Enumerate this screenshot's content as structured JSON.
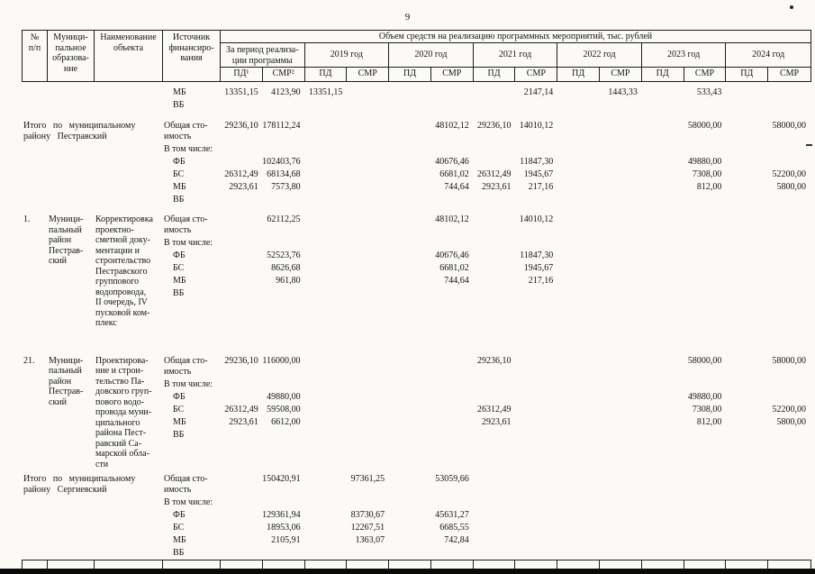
{
  "page": {
    "number": "9"
  },
  "table": {
    "header": {
      "col_num": "№\nп/п",
      "col_municipality": "Муници-\nпальное\nобразова-\nние",
      "col_object": "Наименование\nобъекта",
      "col_source": "Источник\nфинансиро-\nвания",
      "volume_title": "Объем средств на реализацию программных мероприятий, тыс. рублей",
      "period_label": "За период реализа-\nции программы",
      "years": [
        "2019 год",
        "2020 год",
        "2021 год",
        "2022 год",
        "2023 год",
        "2024 год"
      ],
      "sub_cols": [
        "ПД¹",
        "СМР²",
        "ПД",
        "СМР",
        "ПД",
        "СМР",
        "ПД",
        "СМР",
        "ПД",
        "СМР",
        "ПД",
        "СМР",
        "ПД",
        "СМР"
      ]
    },
    "blocks": [
      {
        "num": "",
        "municipality": "",
        "object": "",
        "lines": [
          {
            "source": "    МБ",
            "values": [
              "13351,15",
              "4123,90",
              "13351,15",
              "",
              "",
              "",
              "",
              "2147,14",
              "",
              "1443,33",
              "",
              "533,43",
              "",
              ""
            ]
          },
          {
            "source": "    ВБ",
            "values": []
          }
        ]
      },
      {
        "label": "Итого по муниципальному району Пестравский",
        "lines": [
          {
            "source": "Общая сто-\nимость",
            "values": [
              "29236,10",
              "178112,24",
              "",
              "",
              "",
              "48102,12",
              "29236,10",
              "14010,12",
              "",
              "",
              "",
              "58000,00",
              "",
              "58000,00"
            ]
          },
          {
            "source": "В том числе:",
            "values": []
          },
          {
            "source": "    ФБ",
            "values": [
              "",
              "102403,76",
              "",
              "",
              "",
              "40676,46",
              "",
              "11847,30",
              "",
              "",
              "",
              "49880,00",
              "",
              ""
            ]
          },
          {
            "source": "    БС",
            "values": [
              "26312,49",
              "68134,68",
              "",
              "",
              "",
              "6681,02",
              "26312,49",
              "1945,67",
              "",
              "",
              "",
              "7308,00",
              "",
              "52200,00"
            ]
          },
          {
            "source": "    МБ",
            "values": [
              "2923,61",
              "7573,80",
              "",
              "",
              "",
              "744,64",
              "2923,61",
              "217,16",
              "",
              "",
              "",
              "812,00",
              "",
              "5800,00"
            ]
          },
          {
            "source": "    ВБ",
            "values": []
          }
        ]
      },
      {
        "num": "1.",
        "municipality": "Муници-\nпальный\nрайон\nПестрав-\nский",
        "object": "Корректировка\nпроектно-\nсметной доку-\nментации и\nстроительство\nПестравского\nгруппового\nводопровода,\nII очередь, IV\nпусковой ком-\nплекс",
        "lines": [
          {
            "source": "Общая сто-\nимость",
            "values": [
              "",
              "62112,25",
              "",
              "",
              "",
              "48102,12",
              "",
              "14010,12",
              "",
              "",
              "",
              "",
              "",
              ""
            ]
          },
          {
            "source": "В том числе:",
            "values": []
          },
          {
            "source": "    ФБ",
            "values": [
              "",
              "52523,76",
              "",
              "",
              "",
              "40676,46",
              "",
              "11847,30",
              "",
              "",
              "",
              "",
              "",
              ""
            ]
          },
          {
            "source": "    БС",
            "values": [
              "",
              "8626,68",
              "",
              "",
              "",
              "6681,02",
              "",
              "1945,67",
              "",
              "",
              "",
              "",
              "",
              ""
            ]
          },
          {
            "source": "    МБ",
            "values": [
              "",
              "961,80",
              "",
              "",
              "",
              "744,64",
              "",
              "217,16",
              "",
              "",
              "",
              "",
              "",
              ""
            ]
          },
          {
            "source": "    ВБ",
            "values": []
          }
        ]
      },
      {
        "num": "21.",
        "municipality": "Муници-\nпальный\nрайон\nПестрав-\nский",
        "object": "Проектирова-\nние и строи-\nтельство Па-\nдовского груп-\nпового водо-\nпровода муни-\nципального\nрайона Пест-\nравский Са-\nмарской обла-\nсти",
        "lines": [
          {
            "source": "Общая сто-\nимость",
            "values": [
              "29236,10",
              "116000,00",
              "",
              "",
              "",
              "",
              "29236,10",
              "",
              "",
              "",
              "",
              "58000,00",
              "",
              "58000,00"
            ]
          },
          {
            "source": "В том числе:",
            "values": []
          },
          {
            "source": "    ФБ",
            "values": [
              "",
              "49880,00",
              "",
              "",
              "",
              "",
              "",
              "",
              "",
              "",
              "",
              "49880,00",
              "",
              ""
            ]
          },
          {
            "source": "    БС",
            "values": [
              "26312,49",
              "59508,00",
              "",
              "",
              "",
              "",
              "26312,49",
              "",
              "",
              "",
              "",
              "7308,00",
              "",
              "52200,00"
            ]
          },
          {
            "source": "    МБ",
            "values": [
              "2923,61",
              "6612,00",
              "",
              "",
              "",
              "",
              "2923,61",
              "",
              "",
              "",
              "",
              "812,00",
              "",
              "5800,00"
            ]
          },
          {
            "source": "    ВБ",
            "values": []
          }
        ]
      },
      {
        "label": "Итого по муниципальному району Сергиевский",
        "lines": [
          {
            "source": "Общая сто-\nимость",
            "values": [
              "",
              "150420,91",
              "",
              "97361,25",
              "",
              "53059,66",
              "",
              "",
              "",
              "",
              "",
              "",
              "",
              ""
            ]
          },
          {
            "source": "В том числе:",
            "values": []
          },
          {
            "source": "    ФБ",
            "values": [
              "",
              "129361,94",
              "",
              "83730,67",
              "",
              "45631,27",
              "",
              "",
              "",
              "",
              "",
              "",
              "",
              ""
            ]
          },
          {
            "source": "    БС",
            "values": [
              "",
              "18953,06",
              "",
              "12267,51",
              "",
              "6685,55",
              "",
              "",
              "",
              "",
              "",
              "",
              "",
              ""
            ]
          },
          {
            "source": "    МБ",
            "values": [
              "",
              "2105,91",
              "",
              "1363,07",
              "",
              "742,84",
              "",
              "",
              "",
              "",
              "",
              "",
              "",
              ""
            ]
          },
          {
            "source": "    ВБ",
            "values": []
          }
        ]
      }
    ]
  }
}
